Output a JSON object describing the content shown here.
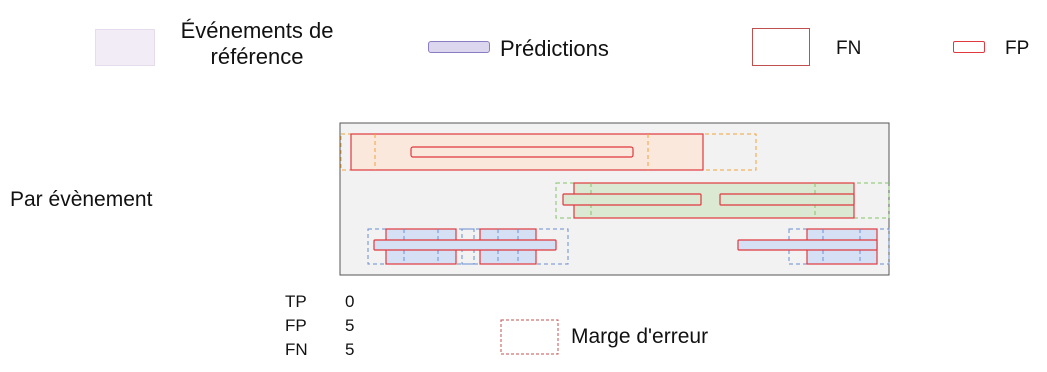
{
  "legend": {
    "reference_events": "Événements de référence",
    "predictions": "Prédictions",
    "fn": "FN",
    "fp": "FP"
  },
  "row_label": "Par évènement",
  "stats": [
    {
      "label": "TP",
      "value": "0"
    },
    {
      "label": "FP",
      "value": "5"
    },
    {
      "label": "FN",
      "value": "5"
    }
  ],
  "margin_label": "Marge d'erreur",
  "colors": {
    "reference_fill": "#f1ecf5",
    "prediction_fill": "#dcd6ef",
    "error_red": "#e0393e",
    "orange_fill": "#fbe8dc",
    "orange_dash": "#f1a23a",
    "green_fill": "#dbe8d2",
    "green_dash": "#84c46a",
    "blue_fill": "#d6e0f5",
    "blue_dash": "#6a8fd3",
    "panel_fill": "#f2f2f2",
    "margin_dash": "#c0504d"
  }
}
